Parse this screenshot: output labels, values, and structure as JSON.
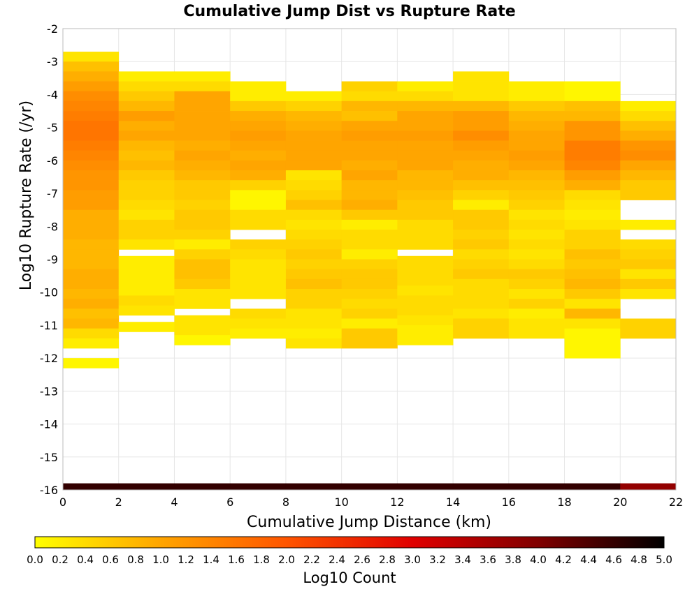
{
  "chart_data": {
    "type": "heatmap",
    "title": "Cumulative Jump Dist vs Rupture Rate",
    "xlabel": "Cumulative Jump Distance (km)",
    "ylabel": "Log10 Rupture Rate (/yr)",
    "xlim": [
      0,
      22
    ],
    "ylim": [
      -16,
      -2
    ],
    "xticks": [
      "0",
      "2",
      "4",
      "6",
      "8",
      "10",
      "12",
      "14",
      "16",
      "18",
      "20",
      "22"
    ],
    "yticks": [
      "-2",
      "-3",
      "-4",
      "-5",
      "-6",
      "-7",
      "-8",
      "-9",
      "-10",
      "-11",
      "-12",
      "-13",
      "-14",
      "-15",
      "-16"
    ],
    "grid": true,
    "x_bins": [
      0,
      2,
      4,
      6,
      8,
      10,
      12,
      14,
      16,
      18,
      20
    ],
    "x_bin_width": 2,
    "y_bin_height": 0.3,
    "columns": [
      {
        "x0": 0,
        "cells": [
          [
            -2.7,
            0.3
          ],
          [
            -3.0,
            0.7
          ],
          [
            -3.3,
            0.9
          ],
          [
            -3.6,
            1.1
          ],
          [
            -3.9,
            1.3
          ],
          [
            -4.2,
            1.4
          ],
          [
            -4.5,
            1.5
          ],
          [
            -4.8,
            1.6
          ],
          [
            -5.1,
            1.6
          ],
          [
            -5.4,
            1.5
          ],
          [
            -5.7,
            1.4
          ],
          [
            -6.0,
            1.3
          ],
          [
            -6.3,
            1.2
          ],
          [
            -6.6,
            1.2
          ],
          [
            -6.9,
            1.1
          ],
          [
            -7.2,
            1.1
          ],
          [
            -7.5,
            0.9
          ],
          [
            -7.8,
            0.9
          ],
          [
            -8.1,
            0.9
          ],
          [
            -8.4,
            0.8
          ],
          [
            -8.7,
            0.8
          ],
          [
            -9.0,
            0.8
          ],
          [
            -9.3,
            0.9
          ],
          [
            -9.6,
            0.9
          ],
          [
            -9.9,
            0.8
          ],
          [
            -10.2,
            0.9
          ],
          [
            -10.5,
            0.7
          ],
          [
            -10.8,
            0.8
          ],
          [
            -11.1,
            0.4
          ],
          [
            -11.4,
            0.2
          ],
          [
            -12.0,
            0.1
          ]
        ]
      },
      {
        "x0": 2,
        "cells": [
          [
            -3.3,
            0.2
          ],
          [
            -3.6,
            0.4
          ],
          [
            -3.9,
            0.6
          ],
          [
            -4.2,
            0.8
          ],
          [
            -4.5,
            1.1
          ],
          [
            -4.8,
            0.9
          ],
          [
            -5.1,
            1.0
          ],
          [
            -5.4,
            0.8
          ],
          [
            -5.7,
            0.7
          ],
          [
            -6.0,
            0.8
          ],
          [
            -6.3,
            0.6
          ],
          [
            -6.6,
            0.5
          ],
          [
            -6.9,
            0.5
          ],
          [
            -7.2,
            0.4
          ],
          [
            -7.5,
            0.3
          ],
          [
            -7.8,
            0.5
          ],
          [
            -8.1,
            0.5
          ],
          [
            -8.4,
            0.3
          ],
          [
            -8.9,
            0.2
          ],
          [
            -9.2,
            0.2
          ],
          [
            -9.5,
            0.2
          ],
          [
            -9.8,
            0.2
          ],
          [
            -10.1,
            0.4
          ],
          [
            -10.4,
            0.3
          ],
          [
            -10.9,
            0.2
          ]
        ]
      },
      {
        "x0": 4,
        "cells": [
          [
            -3.3,
            0.2
          ],
          [
            -3.6,
            0.4
          ],
          [
            -3.9,
            1.0
          ],
          [
            -4.2,
            1.0
          ],
          [
            -4.5,
            1.0
          ],
          [
            -4.8,
            1.0
          ],
          [
            -5.1,
            1.0
          ],
          [
            -5.4,
            0.9
          ],
          [
            -5.7,
            1.0
          ],
          [
            -6.0,
            0.9
          ],
          [
            -6.3,
            0.8
          ],
          [
            -6.6,
            0.6
          ],
          [
            -6.9,
            0.6
          ],
          [
            -7.2,
            0.5
          ],
          [
            -7.5,
            0.6
          ],
          [
            -7.8,
            0.6
          ],
          [
            -8.1,
            0.5
          ],
          [
            -8.4,
            0.2
          ],
          [
            -8.7,
            0.5
          ],
          [
            -9.0,
            0.7
          ],
          [
            -9.3,
            0.7
          ],
          [
            -9.6,
            0.6
          ],
          [
            -9.9,
            0.3
          ],
          [
            -10.2,
            0.3
          ],
          [
            -10.7,
            0.3
          ],
          [
            -11.0,
            0.3
          ],
          [
            -11.3,
            0.1
          ]
        ]
      },
      {
        "x0": 6,
        "cells": [
          [
            -3.6,
            0.2
          ],
          [
            -3.9,
            0.2
          ],
          [
            -4.2,
            0.6
          ],
          [
            -4.5,
            0.9
          ],
          [
            -4.8,
            1.0
          ],
          [
            -5.1,
            1.1
          ],
          [
            -5.4,
            1.0
          ],
          [
            -5.7,
            0.9
          ],
          [
            -6.0,
            1.0
          ],
          [
            -6.3,
            0.9
          ],
          [
            -6.6,
            0.5
          ],
          [
            -6.9,
            0.1
          ],
          [
            -7.2,
            0.1
          ],
          [
            -7.5,
            0.4
          ],
          [
            -7.8,
            0.4
          ],
          [
            -8.4,
            0.5
          ],
          [
            -8.7,
            0.4
          ],
          [
            -9.0,
            0.3
          ],
          [
            -9.3,
            0.3
          ],
          [
            -9.6,
            0.3
          ],
          [
            -9.9,
            0.3
          ],
          [
            -10.5,
            0.4
          ],
          [
            -10.8,
            0.3
          ],
          [
            -11.1,
            0.2
          ]
        ]
      },
      {
        "x0": 8,
        "cells": [
          [
            -3.9,
            0.2
          ],
          [
            -4.2,
            0.5
          ],
          [
            -4.5,
            0.8
          ],
          [
            -4.8,
            0.9
          ],
          [
            -5.1,
            1.0
          ],
          [
            -5.4,
            1.0
          ],
          [
            -5.7,
            1.0
          ],
          [
            -6.0,
            1.0
          ],
          [
            -6.3,
            0.3
          ],
          [
            -6.6,
            0.4
          ],
          [
            -6.9,
            0.5
          ],
          [
            -7.2,
            0.7
          ],
          [
            -7.5,
            0.4
          ],
          [
            -7.8,
            0.3
          ],
          [
            -8.1,
            0.4
          ],
          [
            -8.4,
            0.5
          ],
          [
            -8.7,
            0.6
          ],
          [
            -9.0,
            0.5
          ],
          [
            -9.3,
            0.6
          ],
          [
            -9.6,
            0.7
          ],
          [
            -9.9,
            0.5
          ],
          [
            -10.2,
            0.5
          ],
          [
            -10.5,
            0.3
          ],
          [
            -10.8,
            0.3
          ],
          [
            -11.1,
            0.2
          ],
          [
            -11.4,
            0.3
          ]
        ]
      },
      {
        "x0": 10,
        "cells": [
          [
            -3.6,
            0.5
          ],
          [
            -3.9,
            0.4
          ],
          [
            -4.2,
            0.8
          ],
          [
            -4.5,
            0.7
          ],
          [
            -4.8,
            1.0
          ],
          [
            -5.1,
            1.1
          ],
          [
            -5.4,
            1.0
          ],
          [
            -5.7,
            1.0
          ],
          [
            -6.0,
            0.9
          ],
          [
            -6.3,
            1.0
          ],
          [
            -6.6,
            0.8
          ],
          [
            -6.9,
            0.8
          ],
          [
            -7.2,
            0.9
          ],
          [
            -7.5,
            0.6
          ],
          [
            -7.8,
            0.2
          ],
          [
            -8.1,
            0.4
          ],
          [
            -8.4,
            0.4
          ],
          [
            -8.7,
            0.2
          ],
          [
            -9.0,
            0.5
          ],
          [
            -9.3,
            0.6
          ],
          [
            -9.6,
            0.6
          ],
          [
            -9.9,
            0.5
          ],
          [
            -10.2,
            0.4
          ],
          [
            -10.5,
            0.5
          ],
          [
            -10.8,
            0.2
          ],
          [
            -11.1,
            0.6
          ],
          [
            -11.4,
            0.6
          ]
        ]
      },
      {
        "x0": 12,
        "cells": [
          [
            -3.6,
            0.2
          ],
          [
            -3.9,
            0.4
          ],
          [
            -4.2,
            0.8
          ],
          [
            -4.5,
            1.0
          ],
          [
            -4.8,
            1.0
          ],
          [
            -5.1,
            1.1
          ],
          [
            -5.4,
            1.0
          ],
          [
            -5.7,
            1.0
          ],
          [
            -6.0,
            1.0
          ],
          [
            -6.3,
            0.8
          ],
          [
            -6.6,
            0.8
          ],
          [
            -6.9,
            0.7
          ],
          [
            -7.2,
            0.6
          ],
          [
            -7.5,
            0.6
          ],
          [
            -7.8,
            0.4
          ],
          [
            -8.1,
            0.4
          ],
          [
            -8.4,
            0.4
          ],
          [
            -8.9,
            0.4
          ],
          [
            -9.2,
            0.4
          ],
          [
            -9.5,
            0.4
          ],
          [
            -9.8,
            0.3
          ],
          [
            -10.1,
            0.4
          ],
          [
            -10.4,
            0.4
          ],
          [
            -10.7,
            0.3
          ],
          [
            -11.0,
            0.2
          ],
          [
            -11.3,
            0.2
          ]
        ]
      },
      {
        "x0": 14,
        "cells": [
          [
            -3.3,
            0.3
          ],
          [
            -3.6,
            0.3
          ],
          [
            -3.9,
            0.3
          ],
          [
            -4.2,
            0.8
          ],
          [
            -4.5,
            1.1
          ],
          [
            -4.8,
            1.1
          ],
          [
            -5.1,
            1.3
          ],
          [
            -5.4,
            1.1
          ],
          [
            -5.7,
            1.0
          ],
          [
            -6.0,
            0.9
          ],
          [
            -6.3,
            0.9
          ],
          [
            -6.6,
            0.7
          ],
          [
            -6.9,
            0.5
          ],
          [
            -7.2,
            0.2
          ],
          [
            -7.5,
            0.6
          ],
          [
            -7.8,
            0.6
          ],
          [
            -8.1,
            0.5
          ],
          [
            -8.4,
            0.6
          ],
          [
            -8.7,
            0.4
          ],
          [
            -9.0,
            0.5
          ],
          [
            -9.3,
            0.6
          ],
          [
            -9.6,
            0.4
          ],
          [
            -9.9,
            0.4
          ],
          [
            -10.2,
            0.4
          ],
          [
            -10.5,
            0.3
          ],
          [
            -10.8,
            0.5
          ],
          [
            -11.1,
            0.5
          ]
        ]
      },
      {
        "x0": 16,
        "cells": [
          [
            -3.6,
            0.2
          ],
          [
            -3.9,
            0.2
          ],
          [
            -4.2,
            0.6
          ],
          [
            -4.5,
            0.8
          ],
          [
            -4.8,
            0.9
          ],
          [
            -5.1,
            1.0
          ],
          [
            -5.4,
            1.0
          ],
          [
            -5.7,
            1.1
          ],
          [
            -6.0,
            1.0
          ],
          [
            -6.3,
            0.8
          ],
          [
            -6.6,
            0.7
          ],
          [
            -6.9,
            0.6
          ],
          [
            -7.2,
            0.5
          ],
          [
            -7.5,
            0.3
          ],
          [
            -7.8,
            0.4
          ],
          [
            -8.1,
            0.3
          ],
          [
            -8.4,
            0.4
          ],
          [
            -8.7,
            0.3
          ],
          [
            -9.0,
            0.4
          ],
          [
            -9.3,
            0.6
          ],
          [
            -9.6,
            0.5
          ],
          [
            -9.9,
            0.3
          ],
          [
            -10.2,
            0.5
          ],
          [
            -10.5,
            0.2
          ],
          [
            -10.8,
            0.3
          ],
          [
            -11.1,
            0.3
          ]
        ]
      },
      {
        "x0": 18,
        "cells": [
          [
            -3.6,
            0.1
          ],
          [
            -3.9,
            0.1
          ],
          [
            -4.2,
            0.7
          ],
          [
            -4.5,
            0.8
          ],
          [
            -4.8,
            1.2
          ],
          [
            -5.1,
            1.2
          ],
          [
            -5.4,
            1.5
          ],
          [
            -5.7,
            1.5
          ],
          [
            -6.0,
            1.4
          ],
          [
            -6.3,
            1.1
          ],
          [
            -6.6,
            0.9
          ],
          [
            -6.9,
            0.4
          ],
          [
            -7.2,
            0.3
          ],
          [
            -7.5,
            0.2
          ],
          [
            -7.8,
            0.3
          ],
          [
            -8.1,
            0.5
          ],
          [
            -8.4,
            0.5
          ],
          [
            -8.7,
            0.7
          ],
          [
            -9.0,
            0.6
          ],
          [
            -9.3,
            0.7
          ],
          [
            -9.6,
            0.8
          ],
          [
            -9.9,
            0.6
          ],
          [
            -10.2,
            0.3
          ],
          [
            -10.5,
            0.8
          ],
          [
            -10.8,
            0.3
          ],
          [
            -11.1,
            0.1
          ],
          [
            -11.4,
            0.1
          ],
          [
            -11.7,
            0.1
          ]
        ]
      },
      {
        "x0": 20,
        "cells": [
          [
            -4.2,
            0.2
          ],
          [
            -4.5,
            0.4
          ],
          [
            -4.8,
            0.7
          ],
          [
            -5.1,
            0.9
          ],
          [
            -5.4,
            1.2
          ],
          [
            -5.7,
            1.3
          ],
          [
            -6.0,
            1.0
          ],
          [
            -6.3,
            0.8
          ],
          [
            -6.6,
            0.6
          ],
          [
            -6.9,
            0.6
          ],
          [
            -7.8,
            0.2
          ],
          [
            -8.4,
            0.4
          ],
          [
            -8.7,
            0.5
          ],
          [
            -9.0,
            0.6
          ],
          [
            -9.3,
            0.3
          ],
          [
            -9.6,
            0.6
          ],
          [
            -9.9,
            0.3
          ],
          [
            -10.8,
            0.5
          ],
          [
            -11.1,
            0.5
          ]
        ]
      }
    ],
    "bottom_row": {
      "y": -16,
      "values": [
        4.6,
        4.6,
        4.6,
        4.6,
        4.6,
        4.6,
        4.6,
        4.6,
        4.6,
        4.6,
        3.8
      ]
    },
    "colorbar": {
      "label": "Log10 Count",
      "range": [
        0,
        5
      ],
      "ticks": [
        "0.0",
        "0.2",
        "0.4",
        "0.6",
        "0.8",
        "1.0",
        "1.2",
        "1.4",
        "1.6",
        "1.8",
        "2.0",
        "2.2",
        "2.4",
        "2.6",
        "2.8",
        "3.0",
        "3.2",
        "3.4",
        "3.6",
        "3.8",
        "4.0",
        "4.2",
        "4.4",
        "4.6",
        "4.8",
        "5.0"
      ],
      "stops": [
        "#ffff00",
        "#ffa500",
        "#ff5500",
        "#e00000",
        "#800000",
        "#000000"
      ]
    }
  }
}
